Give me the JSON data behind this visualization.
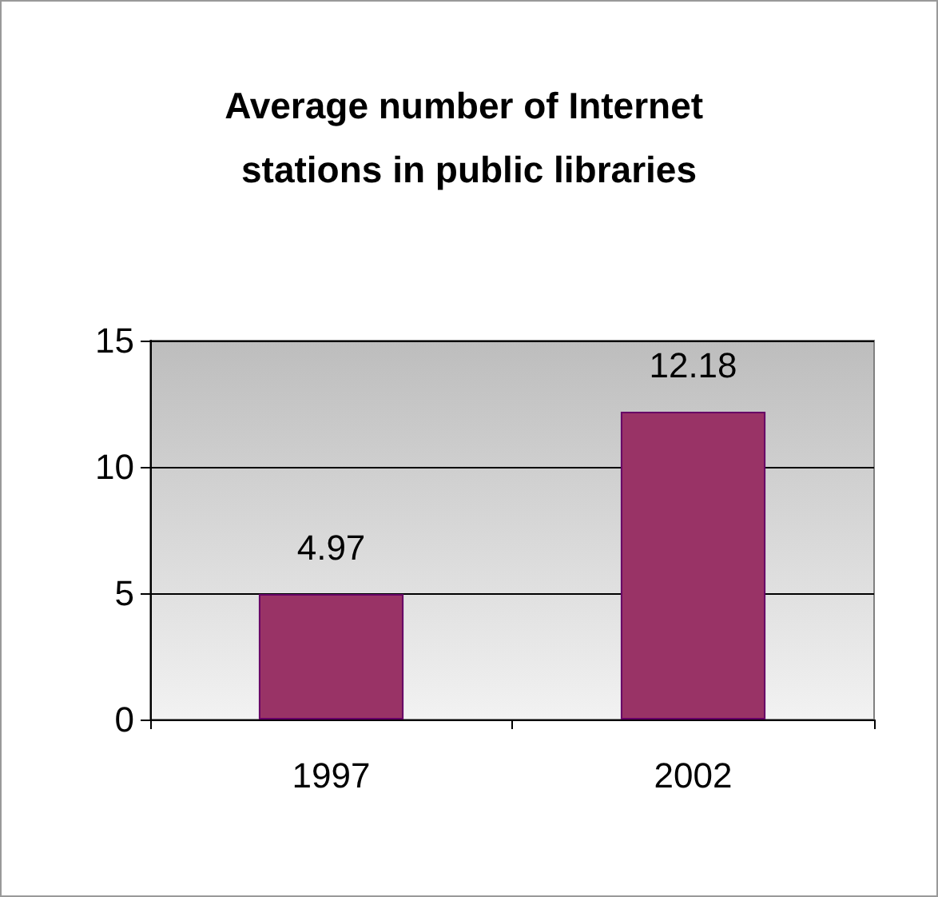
{
  "chart_data": {
    "type": "bar",
    "title": "Average number of Internet stations in public libraries",
    "categories": [
      "1997",
      "2002"
    ],
    "values": [
      4.97,
      12.18
    ],
    "color": "#993366",
    "ylim": [
      0,
      15
    ],
    "yticks": [
      0,
      5,
      10,
      15
    ],
    "grid": "y",
    "data_labels": true
  }
}
